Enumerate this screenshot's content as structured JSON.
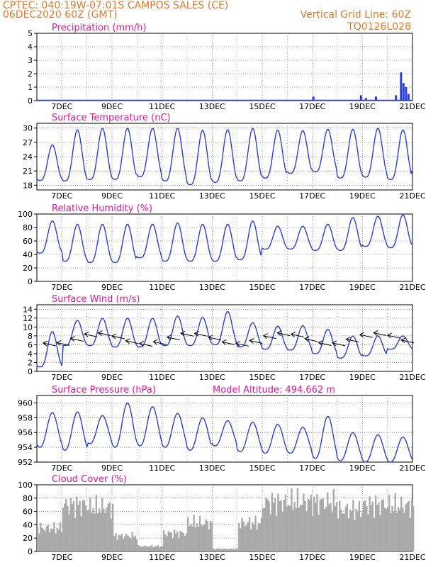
{
  "header": {
    "line1": "CPTEC:  040:19W-07:01S  CAMPOS SALES (CE)",
    "line2": "06DEC2020 60Z (GMT)",
    "right1": "Vertical Grid Line: 60Z",
    "right2": "TQ0126L028"
  },
  "x_ticks": [
    "7DEC",
    "9DEC",
    "11DEC",
    "13DEC",
    "15DEC",
    "17DEC",
    "19DEC",
    "21DEC"
  ],
  "extra_label": "Model Altitude: 494.662 m",
  "colors": {
    "header": "#e8782a",
    "title": "#e0189a",
    "line": "#2a3fdc",
    "bar": "#2a3fdc",
    "cloud": "#a9a9a9",
    "wind": "#000000"
  },
  "chart_data": [
    {
      "type": "bar",
      "title": "Precipitation (mm/h)",
      "ylim": [
        0,
        5
      ],
      "yticks": [
        "0",
        "1",
        "2",
        "3",
        "4",
        "5"
      ],
      "x": [
        "17DEC",
        "18.9DEC",
        "19.1DEC",
        "19.5DEC",
        "20.3DEC",
        "20.5DEC",
        "20.6DEC",
        "20.7DEC",
        "20.8DEC"
      ],
      "values": [
        0.3,
        0.4,
        0.2,
        0.3,
        0.4,
        2.1,
        1.3,
        1.0,
        0.5
      ]
    },
    {
      "type": "line",
      "title": "Surface Temperature (nC)",
      "ylim": [
        17,
        31
      ],
      "yticks": [
        "18",
        "21",
        "24",
        "27",
        "30"
      ],
      "x": [
        "6DEC",
        "7DEC",
        "8DEC",
        "9DEC",
        "10DEC",
        "11DEC",
        "12DEC",
        "13DEC",
        "14DEC",
        "15DEC",
        "16DEC",
        "17DEC",
        "18DEC",
        "19DEC",
        "20DEC",
        "21DEC"
      ],
      "max": [
        26.5,
        29.7,
        30.0,
        30.0,
        30.0,
        30.0,
        29.6,
        29.7,
        30.0,
        29.6,
        29.5,
        29.8,
        29.8,
        30.0,
        29.7,
        27.5
      ],
      "min": [
        19.0,
        18.9,
        19.2,
        19.2,
        19.8,
        18.9,
        18.1,
        18.6,
        18.9,
        19.5,
        20.5,
        20.8,
        19.5,
        19.7,
        19.2,
        21.0
      ]
    },
    {
      "type": "line",
      "title": "Relative Humidity (%)",
      "ylim": [
        0,
        100
      ],
      "yticks": [
        "0",
        "20",
        "40",
        "60",
        "80",
        "100"
      ],
      "x": [
        "6DEC",
        "7DEC",
        "8DEC",
        "9DEC",
        "10DEC",
        "11DEC",
        "12DEC",
        "13DEC",
        "14DEC",
        "15DEC",
        "16DEC",
        "17DEC",
        "18DEC",
        "19DEC",
        "20DEC",
        "21DEC"
      ],
      "max": [
        90,
        85,
        85,
        85,
        85,
        87,
        85,
        85,
        90,
        82,
        82,
        85,
        95,
        97,
        99,
        78
      ],
      "min": [
        42,
        30,
        28,
        28,
        35,
        30,
        30,
        30,
        32,
        48,
        48,
        46,
        46,
        52,
        50,
        55
      ]
    },
    {
      "type": "line",
      "title": "Surface Wind (m/s)",
      "ylim": [
        0,
        15
      ],
      "yticks": [
        "0",
        "2",
        "4",
        "6",
        "8",
        "10",
        "12",
        "14"
      ],
      "x": [
        "6DEC",
        "7DEC",
        "8DEC",
        "9DEC",
        "10DEC",
        "11DEC",
        "12DEC",
        "13DEC",
        "14DEC",
        "15DEC",
        "16DEC",
        "17DEC",
        "18DEC",
        "19DEC",
        "20DEC",
        "21DEC"
      ],
      "max": [
        9,
        11.5,
        12,
        12,
        12,
        12.5,
        12.2,
        13.5,
        11.0,
        10.2,
        10.3,
        9.5,
        8.0,
        8.0,
        8.0,
        8.0
      ],
      "min": [
        1,
        5.8,
        5.8,
        5.5,
        5.5,
        5.8,
        5.8,
        6.0,
        5.5,
        5.0,
        4.8,
        4.0,
        3.0,
        3.5,
        5.0,
        5.0
      ]
    },
    {
      "type": "line",
      "title": "Surface Pressure (hPa)",
      "ylim": [
        952,
        961
      ],
      "yticks": [
        "952",
        "954",
        "956",
        "958",
        "960"
      ],
      "x": [
        "6DEC",
        "7DEC",
        "8DEC",
        "9DEC",
        "10DEC",
        "11DEC",
        "12DEC",
        "13DEC",
        "14DEC",
        "15DEC",
        "16DEC",
        "17DEC",
        "18DEC",
        "19DEC",
        "20DEC",
        "21DEC"
      ],
      "max": [
        958.7,
        958.8,
        958.3,
        960.0,
        959.5,
        958.6,
        958.0,
        957.6,
        957.4,
        957.1,
        956.7,
        958.2,
        956.0,
        955.7,
        955.4,
        955.4
      ],
      "min": [
        954.0,
        953.6,
        954.5,
        954.0,
        954.2,
        954.0,
        953.6,
        954.2,
        953.4,
        953.2,
        953.2,
        952.5,
        952.2,
        952.0,
        952.0,
        952.0
      ]
    },
    {
      "type": "bar",
      "title": "Cloud Cover (%)",
      "ylim": [
        0,
        100
      ],
      "yticks": [
        "0",
        "20",
        "40",
        "60",
        "80",
        "100"
      ],
      "x": [
        "6DEC",
        "7DEC",
        "8DEC",
        "9DEC",
        "10DEC",
        "11DEC",
        "12DEC",
        "13DEC",
        "14DEC",
        "15DEC",
        "16DEC",
        "17DEC",
        "18DEC",
        "19DEC",
        "20DEC",
        "21DEC"
      ],
      "values": [
        45,
        90,
        85,
        30,
        10,
        35,
        55,
        5,
        55,
        95,
        96,
        95,
        80,
        90,
        88,
        98
      ]
    }
  ]
}
